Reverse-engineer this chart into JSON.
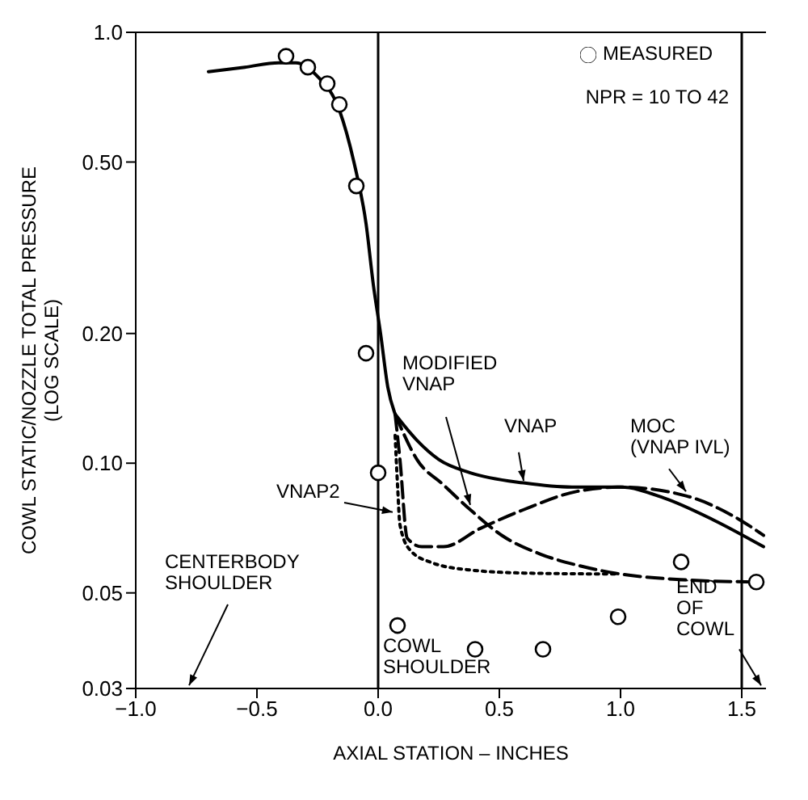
{
  "chart_data": {
    "type": "line",
    "xlabel": "AXIAL STATION – INCHES",
    "ylabel": "COWL STATIC/NOZZLE TOTAL PRESSURE (LOG SCALE)",
    "log": "y",
    "grid": false,
    "legend": "top right",
    "xlim": [
      -1.0,
      1.6
    ],
    "xticks": [
      {
        "value": -1,
        "label": "−1.0"
      },
      {
        "value": -0.5,
        "label": "−0.5"
      },
      {
        "value": 0,
        "label": "0.0"
      },
      {
        "value": 0.5,
        "label": "0.5"
      },
      {
        "value": 1,
        "label": "1.0"
      },
      {
        "value": 1.5,
        "label": "1.5"
      }
    ],
    "ylim": [
      0.03,
      1.0
    ],
    "yticks": [
      0.03,
      0.05,
      {
        "value": 0.1,
        "label": "0.10"
      },
      {
        "value": 0.2,
        "label": "0.20"
      },
      {
        "value": 0.5,
        "label": "0.50"
      },
      {
        "value": 1,
        "label": "1.0"
      }
    ],
    "ref_lines": [
      {
        "axis": "x",
        "value": 0,
        "color": "#000000"
      },
      {
        "axis": "x",
        "value": 1.5,
        "color": "#000000"
      }
    ],
    "annotations": [
      "NPR = 10 TO 42",
      "CENTERBODY SHOULDER",
      "COWL SHOULDER",
      "END OF COWL"
    ],
    "series": [
      {
        "color": "#000000",
        "line_style": "solid",
        "x": [
          -0.7,
          -0.55,
          -0.41,
          -0.34,
          -0.25,
          -0.16,
          -0.1,
          -0.05,
          -0.02,
          0.01,
          0.04,
          0.07
        ],
        "values": [
          0.81,
          0.83,
          0.85,
          0.85,
          0.79,
          0.66,
          0.5,
          0.36,
          0.26,
          0.2,
          0.15,
          0.13
        ]
      },
      {
        "name": "VNAP",
        "color": "#000000",
        "line_style": "solid",
        "x": [
          0.07,
          0.16,
          0.25,
          0.38,
          0.6,
          0.8,
          1.0,
          1.18,
          1.38,
          1.59
        ],
        "values": [
          0.13,
          0.113,
          0.102,
          0.095,
          0.09,
          0.088,
          0.088,
          0.083,
          0.074,
          0.064
        ]
      },
      {
        "name": "MOC (VNAP IVL)",
        "color": "#000000",
        "line_style": "dashed",
        "x": [
          0.07,
          0.09,
          0.12,
          0.18,
          0.27,
          0.42,
          0.6,
          0.82,
          1.0,
          1.27,
          1.49,
          1.59
        ],
        "values": [
          0.13,
          0.102,
          0.067,
          0.064,
          0.064,
          0.0705,
          0.078,
          0.086,
          0.088,
          0.084,
          0.074,
          0.068
        ]
      },
      {
        "name": "MODIFIED VNAP",
        "color": "#000000",
        "line_style": "dashed",
        "x": [
          0.07,
          0.16,
          0.27,
          0.38,
          0.51,
          0.67,
          0.82,
          1.0,
          1.27,
          1.56
        ],
        "values": [
          0.13,
          0.102,
          0.089,
          0.078,
          0.068,
          0.0615,
          0.058,
          0.0553,
          0.0536,
          0.053
        ]
      },
      {
        "name": "VNAP2",
        "color": "#000000",
        "line_style": "dotted",
        "x": [
          0.07,
          0.08,
          0.09,
          0.13,
          0.22,
          0.38,
          0.6,
          0.98
        ],
        "values": [
          0.116,
          0.089,
          0.072,
          0.063,
          0.0588,
          0.0565,
          0.0556,
          0.0553
        ]
      },
      {
        "type": "scatter",
        "name": "MEASURED",
        "color": "#000000",
        "marker": "circle",
        "x": [
          -0.38,
          -0.29,
          -0.21,
          -0.16,
          -0.09,
          -0.05,
          0.0,
          0.08,
          0.4,
          0.68,
          0.99,
          1.25,
          1.56
        ],
        "values": [
          0.88,
          0.83,
          0.76,
          0.68,
          0.44,
          0.18,
          0.095,
          0.042,
          0.037,
          0.037,
          0.044,
          0.059,
          0.053
        ]
      }
    ]
  }
}
